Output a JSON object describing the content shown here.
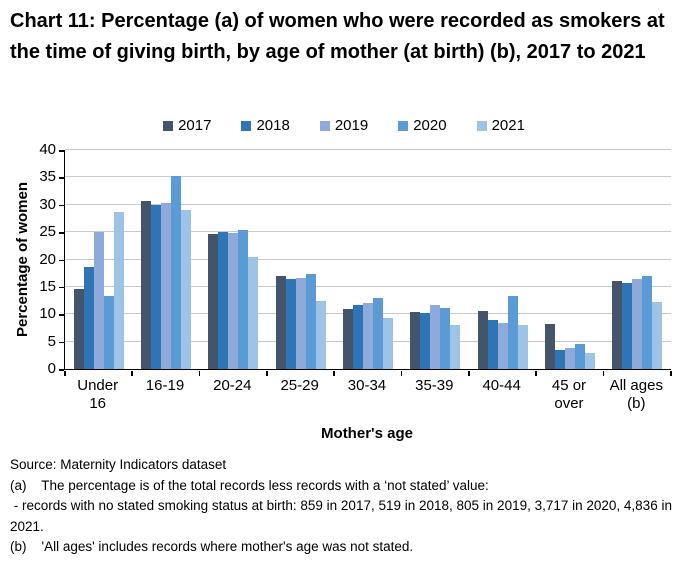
{
  "title": "Chart 11: Percentage (a) of women who were recorded as smokers at the time of giving birth, by age of mother (at birth) (b), 2017 to 2021",
  "chart_data": {
    "type": "bar",
    "title": "Chart 11: Percentage (a) of women who were recorded as smokers at the time of giving birth, by age of mother (at birth) (b), 2017 to 2021",
    "xlabel": "Mother's age",
    "ylabel": "Percentage of women",
    "ylim": [
      0,
      40
    ],
    "yticks": [
      0,
      5,
      10,
      15,
      20,
      25,
      30,
      35,
      40
    ],
    "grid": "horizontal",
    "legend_position": "top",
    "categories": [
      "Under 16",
      "16-19",
      "20-24",
      "25-29",
      "30-34",
      "35-39",
      "40-44",
      "45 or over",
      "All ages (b)"
    ],
    "category_label_lines": [
      [
        "Under",
        "16"
      ],
      [
        "16-19"
      ],
      [
        "20-24"
      ],
      [
        "25-29"
      ],
      [
        "30-34"
      ],
      [
        "35-39"
      ],
      [
        "40-44"
      ],
      [
        "45 or",
        "over"
      ],
      [
        "All ages",
        "(b)"
      ]
    ],
    "series": [
      {
        "name": "2017",
        "color": "#44546A",
        "values": [
          14.7,
          30.6,
          24.7,
          17.0,
          11.0,
          10.4,
          10.6,
          8.3,
          16.1
        ]
      },
      {
        "name": "2018",
        "color": "#2E75B6",
        "values": [
          18.6,
          30.0,
          25.0,
          16.5,
          11.7,
          10.2,
          8.9,
          3.5,
          15.8
        ]
      },
      {
        "name": "2019",
        "color": "#8EAADB",
        "values": [
          25.0,
          30.3,
          24.9,
          16.6,
          12.1,
          11.7,
          8.4,
          3.9,
          16.4
        ]
      },
      {
        "name": "2020",
        "color": "#5B9BD5",
        "values": [
          13.4,
          35.3,
          25.4,
          17.4,
          12.9,
          11.2,
          13.3,
          4.5,
          16.9
        ]
      },
      {
        "name": "2021",
        "color": "#9DC3E6",
        "values": [
          28.7,
          29.0,
          20.4,
          12.5,
          9.3,
          8.1,
          8.1,
          2.9,
          12.2
        ]
      }
    ]
  },
  "footnotes": {
    "lines": [
      "Source: Maternity Indicators dataset",
      "(a)    The percentage is of the total records less records with a ‘not stated’ value:",
      " - records with no stated smoking status at birth: 859 in 2017, 519 in 2018, 805 in 2019, 3,717 in 2020, 4,836 in 2021.",
      "(b)    'All ages' includes records where mother's age was not stated."
    ]
  },
  "colors": {
    "background": "#FFFFFF",
    "axis": "#000000",
    "gridline": "#C9C9C9",
    "text": "#000000"
  }
}
